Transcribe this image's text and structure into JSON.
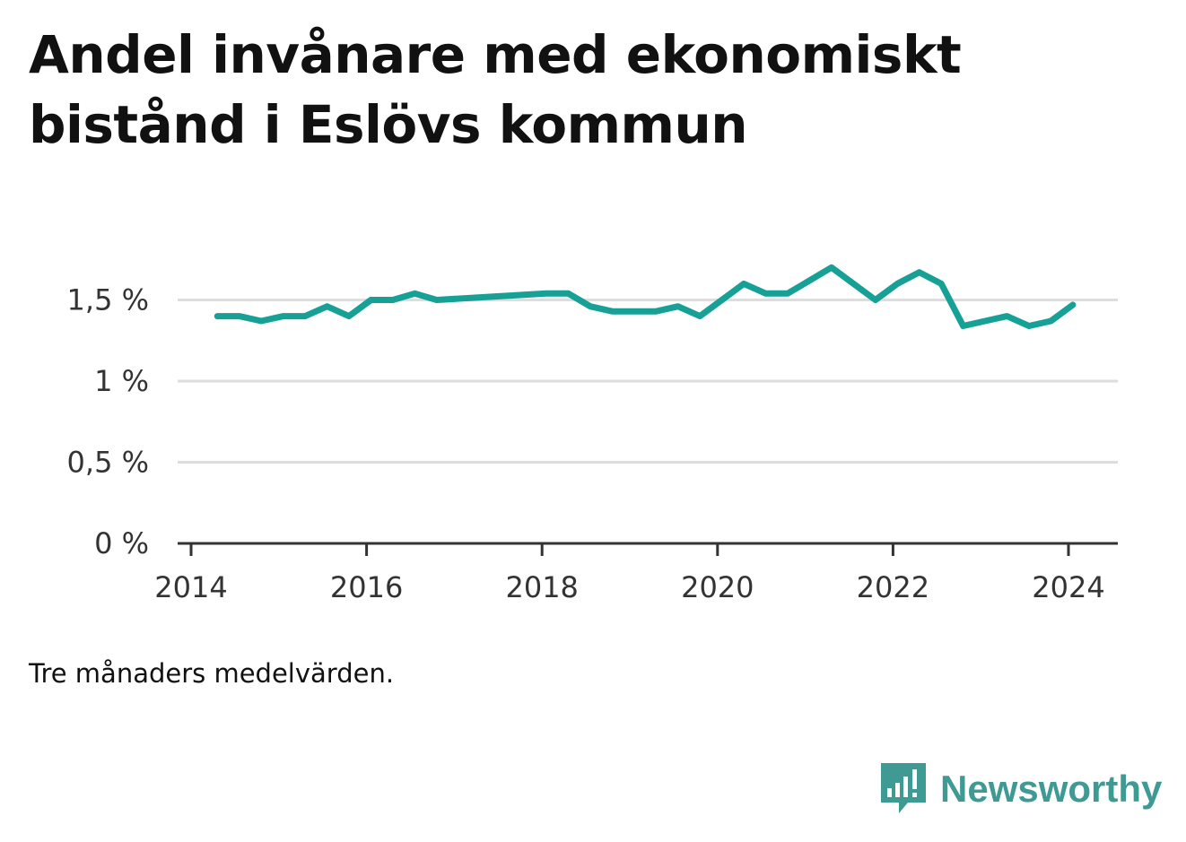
{
  "title": "Andel invånare med ekonomiskt bistånd i Eslövs kommun",
  "note": "Tre månaders medelvärden.",
  "brand": {
    "name": "Newsworthy",
    "icon": "newsworthy-logo-icon",
    "color": "#3f9a93"
  },
  "colors": {
    "line": "#16a096",
    "grid": "#dddddd",
    "axis": "#333333"
  },
  "chart_data": {
    "type": "line",
    "title": "Andel invånare med ekonomiskt bistånd i Eslövs kommun",
    "xlabel": "",
    "ylabel": "",
    "xlim": [
      2014,
      2024.25
    ],
    "ylim": [
      0,
      1.9
    ],
    "x_ticks": [
      2014,
      2016,
      2018,
      2020,
      2022,
      2024
    ],
    "x_tick_labels": [
      "2014",
      "2016",
      "2018",
      "2020",
      "2022",
      "2024"
    ],
    "y_ticks": [
      0,
      0.5,
      1,
      1.5
    ],
    "y_tick_labels": [
      "0 %",
      "0,5 %",
      "1 %",
      "1,5 %"
    ],
    "grid": true,
    "series": [
      {
        "x": [
          2014.3,
          2014.55,
          2014.8,
          2015.05,
          2015.3,
          2015.55,
          2015.8,
          2016.05,
          2016.3,
          2016.55,
          2016.8,
          2018.05,
          2018.3,
          2018.55,
          2018.8,
          2019.05,
          2019.3,
          2019.55,
          2019.8,
          2020.05,
          2020.3,
          2020.55,
          2020.8,
          2021.05,
          2021.3,
          2021.55,
          2021.8,
          2022.05,
          2022.3,
          2022.55,
          2022.8,
          2023.05,
          2023.3,
          2023.55,
          2023.8,
          2024.05
        ],
        "y": [
          1.4,
          1.4,
          1.37,
          1.4,
          1.4,
          1.46,
          1.4,
          1.5,
          1.5,
          1.54,
          1.5,
          1.54,
          1.54,
          1.46,
          1.43,
          1.43,
          1.43,
          1.46,
          1.4,
          1.5,
          1.6,
          1.54,
          1.54,
          1.62,
          1.7,
          1.6,
          1.5,
          1.6,
          1.67,
          1.6,
          1.34,
          1.37,
          1.4,
          1.34,
          1.37,
          1.47
        ]
      }
    ]
  }
}
